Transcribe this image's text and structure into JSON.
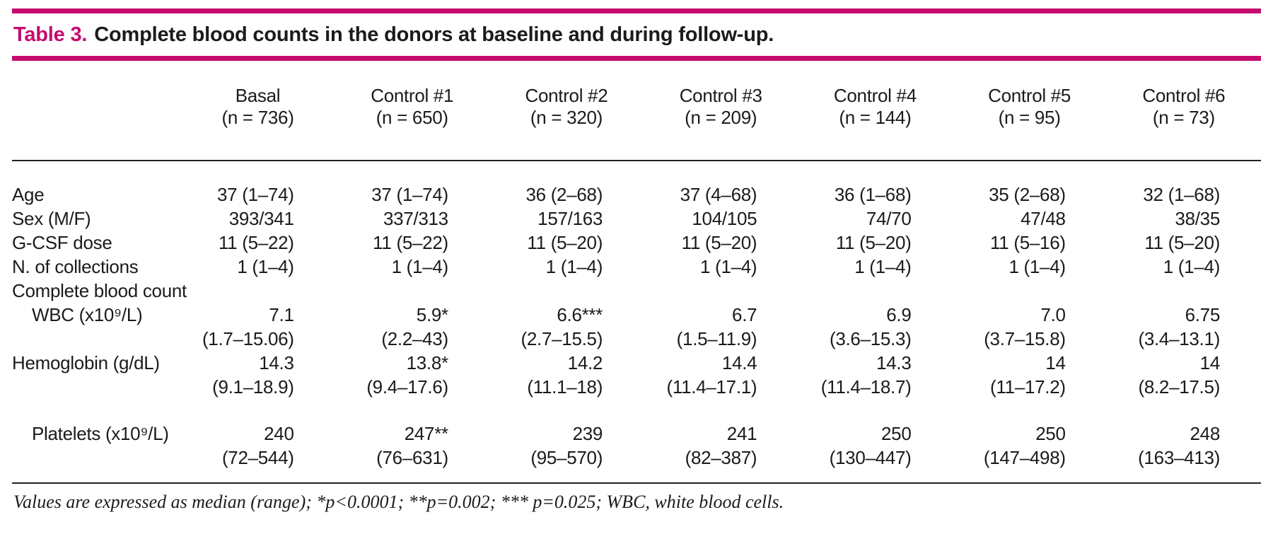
{
  "colors": {
    "accent": "#c60b6e",
    "text": "#1b1b1b",
    "rule": "#222222"
  },
  "title": {
    "label": "Table 3.",
    "text": "Complete blood counts in the donors at baseline and during follow-up."
  },
  "table": {
    "columns": [
      {
        "name": "Basal",
        "n": "(n = 736)"
      },
      {
        "name": "Control #1",
        "n": "(n = 650)"
      },
      {
        "name": "Control #2",
        "n": "(n = 320)"
      },
      {
        "name": "Control #3",
        "n": "(n = 209)"
      },
      {
        "name": "Control #4",
        "n": "(n = 144)"
      },
      {
        "name": "Control #5",
        "n": "(n = 95)"
      },
      {
        "name": "Control #6",
        "n": "(n = 73)"
      }
    ],
    "rows": [
      {
        "label": "Age",
        "values": [
          "37 (1–74)",
          "37 (1–74)",
          "36 (2–68)",
          "37 (4–68)",
          "36 (1–68)",
          "35 (2–68)",
          "32 (1–68)"
        ]
      },
      {
        "label": "Sex (M/F)",
        "values": [
          "393/341",
          "337/313",
          "157/163",
          "104/105",
          "74/70",
          "47/48",
          "38/35"
        ]
      },
      {
        "label": "G-CSF dose",
        "values": [
          "11 (5–22)",
          "11 (5–22)",
          "11 (5–20)",
          "11 (5–20)",
          "11 (5–20)",
          "11 (5–16)",
          "11 (5–20)"
        ]
      },
      {
        "label": "N. of collections",
        "values": [
          "1 (1–4)",
          "1 (1–4)",
          "1 (1–4)",
          "1 (1–4)",
          "1 (1–4)",
          "1 (1–4)",
          "1 (1–4)"
        ]
      },
      {
        "label": "Complete blood count",
        "values": [
          "",
          "",
          "",
          "",
          "",
          "",
          ""
        ]
      },
      {
        "label": "WBC (x10⁹/L)",
        "values": [
          "7.1",
          "5.9*",
          "6.6***",
          "6.7",
          "6.9",
          "7.0",
          "6.75"
        ]
      },
      {
        "label": "",
        "values": [
          "(1.7–15.06)",
          "(2.2–43)",
          "(2.7–15.5)",
          "(1.5–11.9)",
          "(3.6–15.3)",
          "(3.7–15.8)",
          "(3.4–13.1)"
        ]
      },
      {
        "label": "Hemoglobin (g/dL)",
        "values": [
          "14.3",
          "13.8*",
          "14.2",
          "14.4",
          "14.3",
          "14",
          "14"
        ]
      },
      {
        "label": "",
        "values": [
          "(9.1–18.9)",
          "(9.4–17.6)",
          "(11.1–18)",
          "(11.4–17.1)",
          "(11.4–18.7)",
          "(11–17.2)",
          "(8.2–17.5)"
        ]
      },
      {
        "label": "Platelets (x10⁹/L)",
        "values": [
          "240",
          "247**",
          "239",
          "241",
          "250",
          "250",
          "248"
        ]
      },
      {
        "label": "",
        "values": [
          "(72–544)",
          "(76–631)",
          "(95–570)",
          "(82–387)",
          "(130–447)",
          "(147–498)",
          "(163–413)"
        ]
      }
    ]
  },
  "footnote": "Values are expressed as median (range); *p<0.0001; **p=0.002; *** p=0.025; WBC, white blood cells."
}
